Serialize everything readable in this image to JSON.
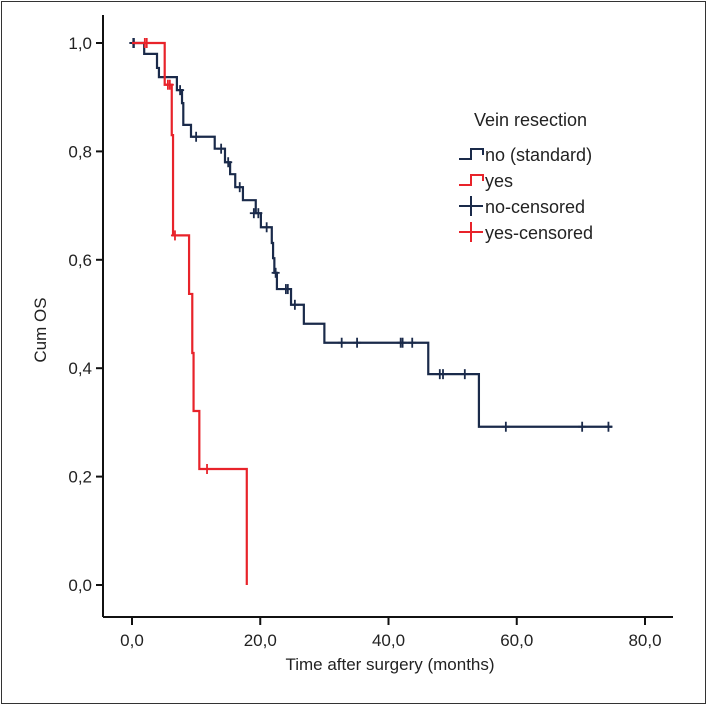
{
  "chart_data": {
    "type": "line",
    "subtype": "kaplan-meier-step",
    "title": "",
    "xlabel": "Time after surgery (months)",
    "ylabel": "Cum OS",
    "xlim": [
      0,
      80
    ],
    "ylim": [
      0,
      1
    ],
    "x_ticks": [
      0,
      20,
      40,
      60,
      80
    ],
    "x_tick_labels": [
      "0,0",
      "20,0",
      "40,0",
      "60,0",
      "80,0"
    ],
    "y_ticks": [
      0,
      0.2,
      0.4,
      0.6,
      0.8,
      1.0
    ],
    "y_tick_labels": [
      "0,0",
      "0,2",
      "0,4",
      "0,6",
      "0,8",
      "1,0"
    ],
    "grid": false,
    "legend": {
      "title": "Vein resection",
      "placement": "right",
      "entries": [
        {
          "label": "no (standard)",
          "symbol": "step",
          "color": "#1a2a4a"
        },
        {
          "label": "yes",
          "symbol": "step",
          "color": "#e8232a"
        },
        {
          "label": "no-censored",
          "symbol": "plus",
          "color": "#1a2a4a"
        },
        {
          "label": "yes-censored",
          "symbol": "plus",
          "color": "#e8232a"
        }
      ]
    },
    "series": [
      {
        "name": "no (standard)",
        "color": "#1a2a4a",
        "steps": [
          [
            0,
            1.0
          ],
          [
            1.9,
            0.98
          ],
          [
            3.9,
            0.954
          ],
          [
            4.2,
            0.937
          ],
          [
            7.0,
            0.913
          ],
          [
            7.8,
            0.889
          ],
          [
            8.0,
            0.849
          ],
          [
            9.2,
            0.827
          ],
          [
            12.9,
            0.805
          ],
          [
            14.5,
            0.78
          ],
          [
            15.3,
            0.758
          ],
          [
            16.1,
            0.734
          ],
          [
            17.3,
            0.71
          ],
          [
            19.3,
            0.686
          ],
          [
            20.1,
            0.66
          ],
          [
            21.8,
            0.631
          ],
          [
            22.0,
            0.603
          ],
          [
            22.2,
            0.576
          ],
          [
            22.6,
            0.546
          ],
          [
            24.8,
            0.517
          ],
          [
            26.8,
            0.482
          ],
          [
            30.0,
            0.447
          ],
          [
            46.2,
            0.389
          ],
          [
            54.1,
            0.292
          ]
        ],
        "end_time": 74.9,
        "censored": [
          [
            0.2,
            1.0
          ],
          [
            0.3,
            1.0
          ],
          [
            7.5,
            0.913
          ],
          [
            10.0,
            0.827
          ],
          [
            13.9,
            0.805
          ],
          [
            15.0,
            0.78
          ],
          [
            16.8,
            0.734
          ],
          [
            19.0,
            0.686
          ],
          [
            19.7,
            0.686
          ],
          [
            21.0,
            0.66
          ],
          [
            22.4,
            0.576
          ],
          [
            24.0,
            0.546
          ],
          [
            24.3,
            0.546
          ],
          [
            25.4,
            0.517
          ],
          [
            32.7,
            0.447
          ],
          [
            35.1,
            0.447
          ],
          [
            41.9,
            0.447
          ],
          [
            42.2,
            0.447
          ],
          [
            43.7,
            0.447
          ],
          [
            48.0,
            0.389
          ],
          [
            48.5,
            0.389
          ],
          [
            51.9,
            0.389
          ],
          [
            58.3,
            0.292
          ],
          [
            70.2,
            0.292
          ],
          [
            74.3,
            0.292
          ]
        ]
      },
      {
        "name": "yes",
        "color": "#e8232a",
        "steps": [
          [
            0,
            1.0
          ],
          [
            5.1,
            0.923
          ],
          [
            6.2,
            0.83
          ],
          [
            6.4,
            0.645
          ],
          [
            8.9,
            0.537
          ],
          [
            9.4,
            0.428
          ],
          [
            9.6,
            0.321
          ],
          [
            10.5,
            0.214
          ],
          [
            17.9,
            0.0
          ]
        ],
        "end_time": 17.9,
        "censored": [
          [
            2.0,
            1.0
          ],
          [
            2.3,
            1.0
          ],
          [
            5.6,
            0.923
          ],
          [
            5.9,
            0.923
          ],
          [
            6.7,
            0.645
          ],
          [
            11.7,
            0.214
          ]
        ]
      }
    ]
  }
}
